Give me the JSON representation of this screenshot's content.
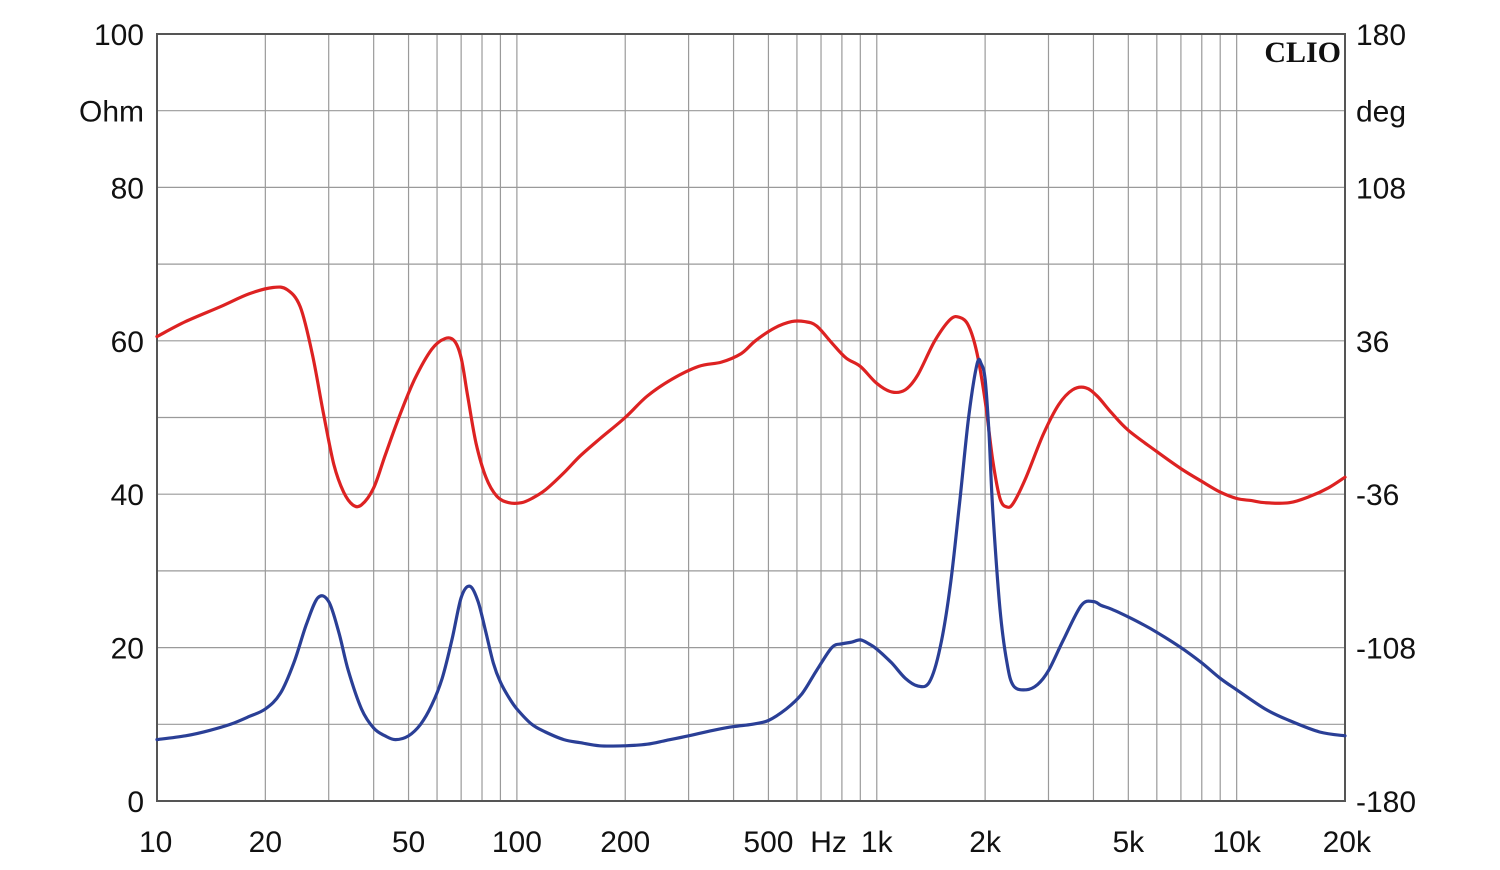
{
  "chart_data": {
    "type": "line",
    "title": "",
    "brand": "CLIO",
    "xscale": "log",
    "xlim": [
      10,
      20000
    ],
    "ylim": [
      0,
      100
    ],
    "y2lim": [
      -180,
      180
    ],
    "grid": true,
    "xlabel_unit": "Hz",
    "ylabel": "Ohm",
    "y2label": "deg",
    "x_ticks": [
      {
        "value": 10,
        "label": "10"
      },
      {
        "value": 20,
        "label": "20"
      },
      {
        "value": 50,
        "label": "50"
      },
      {
        "value": 100,
        "label": "100"
      },
      {
        "value": 200,
        "label": "200"
      },
      {
        "value": 500,
        "label": "500"
      },
      {
        "value": 1000,
        "label": "1k"
      },
      {
        "value": 2000,
        "label": "2k"
      },
      {
        "value": 5000,
        "label": "5k"
      },
      {
        "value": 10000,
        "label": "10k"
      },
      {
        "value": 20000,
        "label": "20k"
      }
    ],
    "y_ticks": [
      {
        "value": 0,
        "label": "0"
      },
      {
        "value": 20,
        "label": "20"
      },
      {
        "value": 40,
        "label": "40"
      },
      {
        "value": 60,
        "label": "60"
      },
      {
        "value": 80,
        "label": "80"
      },
      {
        "value": 100,
        "label": "100"
      }
    ],
    "y2_ticks": [
      {
        "value": -180,
        "label": "-180"
      },
      {
        "value": -108,
        "label": "-108"
      },
      {
        "value": -36,
        "label": "-36"
      },
      {
        "value": 36,
        "label": "36"
      },
      {
        "value": 108,
        "label": "108"
      },
      {
        "value": 180,
        "label": "180"
      }
    ],
    "series": [
      {
        "axis": "right",
        "color": "#dd2222",
        "x": [
          10,
          12,
          15,
          18,
          21,
          23,
          25,
          27,
          29,
          31,
          33,
          35,
          37,
          40,
          43,
          47,
          52,
          58,
          63,
          67,
          70,
          73,
          77,
          82,
          88,
          95,
          103,
          110,
          120,
          135,
          150,
          170,
          200,
          230,
          270,
          320,
          370,
          420,
          460,
          520,
          580,
          630,
          680,
          750,
          820,
          900,
          1000,
          1100,
          1200,
          1300,
          1450,
          1600,
          1700,
          1800,
          1900,
          2000,
          2100,
          2200,
          2300,
          2400,
          2600,
          2900,
          3200,
          3500,
          3800,
          4100,
          4500,
          5000,
          6000,
          7000,
          8000,
          9000,
          10000,
          11000,
          12000,
          14000,
          16000,
          18000,
          20000
        ],
        "values": [
          38,
          45,
          52,
          58,
          61,
          60,
          52,
          30,
          2,
          -22,
          -35,
          -41,
          -41,
          -33,
          -18,
          0,
          18,
          32,
          37,
          36,
          28,
          10,
          -12,
          -28,
          -37,
          -40,
          -40,
          -38,
          -34,
          -26,
          -18,
          -10,
          0,
          10,
          18,
          24,
          26,
          30,
          36,
          42,
          45,
          45,
          43,
          35,
          28,
          24,
          16,
          12,
          13,
          20,
          36,
          46,
          47,
          43,
          30,
          8,
          -20,
          -38,
          -42,
          -40,
          -28,
          -8,
          6,
          13,
          14,
          10,
          2,
          -6,
          -16,
          -24,
          -30,
          -35,
          -38,
          -39,
          -40,
          -40,
          -37,
          -33,
          -28
        ]
      },
      {
        "axis": "left",
        "color": "#2a3f96",
        "x": [
          10,
          12,
          14,
          16,
          18,
          20,
          22,
          24,
          26,
          28,
          30,
          32,
          34,
          37,
          40,
          43,
          46,
          50,
          54,
          58,
          62,
          66,
          70,
          74,
          78,
          82,
          86,
          90,
          95,
          100,
          110,
          120,
          135,
          150,
          170,
          200,
          230,
          260,
          300,
          350,
          400,
          450,
          500,
          560,
          620,
          680,
          750,
          800,
          850,
          900,
          950,
          1000,
          1100,
          1200,
          1300,
          1400,
          1500,
          1600,
          1700,
          1800,
          1900,
          1950,
          2000,
          2050,
          2100,
          2200,
          2300,
          2400,
          2600,
          2800,
          3000,
          3300,
          3700,
          4000,
          4200,
          4500,
          5000,
          5500,
          6000,
          7000,
          8000,
          9000,
          10000,
          12000,
          14000,
          17000,
          20000
        ],
        "values": [
          8,
          8.5,
          9.2,
          10,
          11,
          12,
          14,
          18,
          23,
          26.5,
          26,
          22,
          17,
          12,
          9.5,
          8.5,
          8,
          8.5,
          10,
          12.5,
          16,
          21,
          26.5,
          28,
          26,
          22,
          18,
          15.5,
          13.5,
          12,
          10,
          9,
          8,
          7.6,
          7.2,
          7.2,
          7.4,
          7.9,
          8.5,
          9.2,
          9.7,
          10,
          10.5,
          12,
          14,
          17,
          20,
          20.5,
          20.7,
          21,
          20.5,
          19.8,
          18,
          16,
          15,
          15.5,
          20,
          28,
          39,
          50,
          57,
          57,
          55,
          48,
          38,
          25,
          18,
          15,
          14.5,
          15.2,
          17,
          21,
          25.5,
          26,
          25.5,
          25,
          24,
          23,
          22,
          20,
          18,
          16,
          14.5,
          12,
          10.5,
          9,
          8.5
        ]
      }
    ]
  }
}
